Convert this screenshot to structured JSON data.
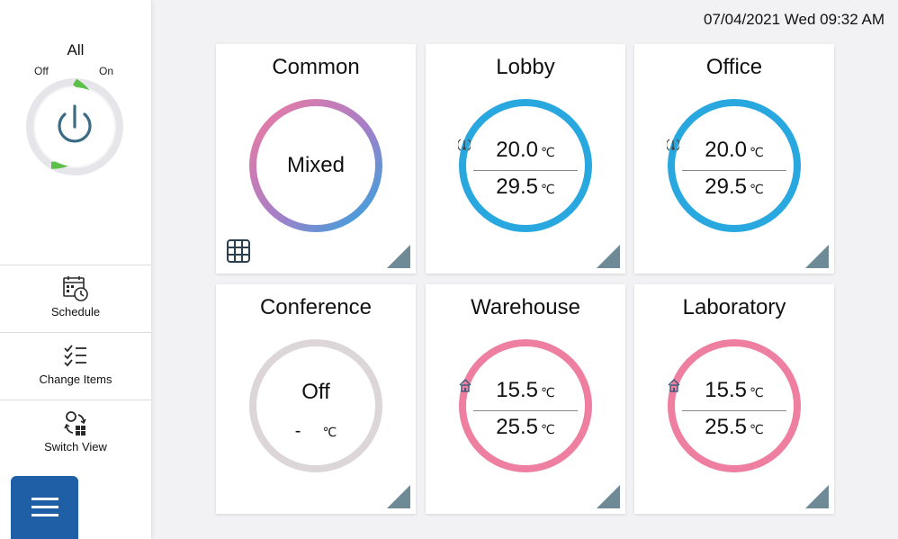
{
  "sidebar": {
    "all_label": "All",
    "off_label": "Off",
    "on_label": "On",
    "nav": [
      {
        "label": "Schedule",
        "icon": "calendar-clock-icon"
      },
      {
        "label": "Change Items",
        "icon": "checklist-icon"
      },
      {
        "label": "Switch View",
        "icon": "switch-view-icon"
      }
    ],
    "menu_icon": "hamburger-icon"
  },
  "header": {
    "datetime": "07/04/2021 Wed 09:32 AM"
  },
  "colors": {
    "cool": "#29a8e0",
    "heat": "#ee7fa1",
    "off": "#dcd6d8",
    "power_on": "#5cbf4a",
    "menu": "#1e5fa6",
    "corner": "#6e8a96"
  },
  "tiles": [
    {
      "name": "Common",
      "state": "Mixed"
    },
    {
      "name": "Lobby",
      "mode": "cool",
      "set_temp": "20.0",
      "room_temp": "29.5",
      "unit": "℃"
    },
    {
      "name": "Office",
      "mode": "cool",
      "set_temp": "20.0",
      "room_temp": "29.5",
      "unit": "℃"
    },
    {
      "name": "Conference",
      "state": "Off",
      "room_temp": "-",
      "unit": "℃"
    },
    {
      "name": "Warehouse",
      "mode": "heat",
      "set_temp": "15.5",
      "room_temp": "25.5",
      "unit": "℃"
    },
    {
      "name": "Laboratory",
      "mode": "heat",
      "set_temp": "15.5",
      "room_temp": "25.5",
      "unit": "℃"
    }
  ]
}
